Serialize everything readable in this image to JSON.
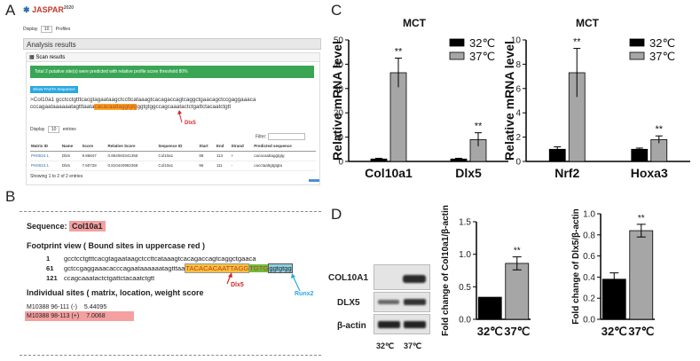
{
  "panels": {
    "A": "A",
    "B": "B",
    "C": "C",
    "D": "D"
  },
  "panelA": {
    "logo": "JASPAR",
    "logo_sup": "2020",
    "display_label": "Display",
    "display_value": "10",
    "profiles_label": "Profiles",
    "analysis_title": "Analysis results",
    "scan_results": "Scan results",
    "banner": "Total 2 putative site(s) were predicted with relative profile score threshold 80%",
    "fasta_button": "Show FASTA Sequence",
    "seq_name": ">Col10a1",
    "seq_line1": "gcctcctgtttcacgtagaataagctccttcataaagtcacagaccagtcaggctgaacagctccgaggaaaca",
    "seq_line2_pre": "cccagaataaaaaatagtttaata",
    "seq_line2_hl": "cacacaattaggtgtg",
    "seq_line2_post": "ggtgtggccagcaaatactctgattctacaatctgtt",
    "dlx5": "Dlx5",
    "display2_label": "Display",
    "display2_value": "10",
    "entries_label": "entries",
    "filter_label": "Filter:",
    "table_headers": [
      "Matrix ID",
      "Name",
      "Score",
      "Relative Score",
      "Sequence ID",
      "Start",
      "End",
      "Strand",
      "Predicted sequence"
    ],
    "rows": [
      [
        "PH0024.1",
        "Dlx5",
        "9.86847",
        "0.854060341356",
        "Col10a1",
        "98",
        "113",
        "+",
        "cacacaattaggtgtg"
      ],
      [
        "PH0024.1",
        "Dlx5",
        "7.60728",
        "0.810440982368",
        "Col10a1",
        "96",
        "111",
        "-",
        "cacctaattgtgtgta"
      ]
    ],
    "showing": "Showing 1 to 2 of 2 entries"
  },
  "panelB": {
    "sequence_label": "Sequence:",
    "sequence_name": "Col10a1",
    "footprint_title": "Footprint view ( Bound sites in uppercase red )",
    "line1_num": "1",
    "line1_seq": "gcctcctgtttcacgtagaataagctccttcataaagtcacagaccagtcaggctgaaca",
    "line2_num": "61",
    "line2_seq": "gctccgaggaaacacccagaataaaaaatagtttaa",
    "line2_hl_yellow": "TACACACAATTAGG",
    "line2_hl_green": "TGTG",
    "line2_hl_blue": "ggtgtgg",
    "line3_num": "121",
    "line3_seq": "ccagcaaatactctgattctacaatctgtt",
    "dlx5": "Dlx5",
    "runx2": "Runx2",
    "individual_title": "Individual sites  ( matrix, location, weight score",
    "sites": [
      {
        "matrix": "M10388",
        "loc": "96-111 (-)",
        "score": "5.44095"
      },
      {
        "matrix": "M10388",
        "loc": "98-113 (+)",
        "score": "7.0068"
      }
    ]
  },
  "chart_data": [
    {
      "type": "bar",
      "title": "MCT",
      "ylabel": "Relative mRNA level",
      "categories": [
        "Col10a1",
        "Dlx5"
      ],
      "ylim": [
        0,
        50
      ],
      "yticks": [
        0,
        10,
        20,
        30,
        40,
        50
      ],
      "series": [
        {
          "name": "32℃",
          "color": "#000000",
          "values": [
            1,
            1
          ],
          "errors": [
            0.3,
            0.3
          ]
        },
        {
          "name": "37℃",
          "color": "#a6a6a6",
          "values": [
            36.5,
            9
          ],
          "errors": [
            6,
            2.8
          ]
        }
      ],
      "annotations": [
        "**",
        "**"
      ]
    },
    {
      "type": "bar",
      "title": "MCT",
      "ylabel": "Relative mRNA level",
      "categories": [
        "Nrf2",
        "Hoxa3"
      ],
      "ylim": [
        0,
        10
      ],
      "yticks": [
        0,
        2,
        4,
        6,
        8,
        10
      ],
      "series": [
        {
          "name": "32℃",
          "color": "#000000",
          "values": [
            1,
            1
          ],
          "errors": [
            0.2,
            0.1
          ]
        },
        {
          "name": "37℃",
          "color": "#a6a6a6",
          "values": [
            7.3,
            1.8
          ],
          "errors": [
            2,
            0.3
          ]
        }
      ],
      "annotations": [
        "**",
        "**"
      ]
    },
    {
      "type": "bar",
      "ylabel": "Fold change of Col10a1/β-actin",
      "categories": [
        "32℃",
        "37℃"
      ],
      "ylim": [
        0,
        1.5
      ],
      "yticks": [
        "0.0",
        "0.5",
        "1.0",
        "1.5"
      ],
      "values": [
        0.34,
        0.86
      ],
      "errors": [
        0,
        0.1
      ],
      "colors": [
        "#000000",
        "#a6a6a6"
      ],
      "annotations": [
        "",
        "**"
      ]
    },
    {
      "type": "bar",
      "ylabel": "Fold change of Dlx5/β-actin",
      "categories": [
        "32℃",
        "37℃"
      ],
      "ylim": [
        0,
        1.0
      ],
      "yticks": [
        "0.0",
        "0.2",
        "0.4",
        "0.6",
        "0.8",
        "1.0"
      ],
      "values": [
        0.38,
        0.84
      ],
      "errors": [
        0.06,
        0.06
      ],
      "colors": [
        "#000000",
        "#a6a6a6"
      ],
      "annotations": [
        "",
        "**"
      ]
    }
  ],
  "blot": {
    "rows": [
      "COL10A1",
      "DLX5",
      "β-actin"
    ],
    "lanes": [
      "32℃",
      "37℃"
    ]
  }
}
